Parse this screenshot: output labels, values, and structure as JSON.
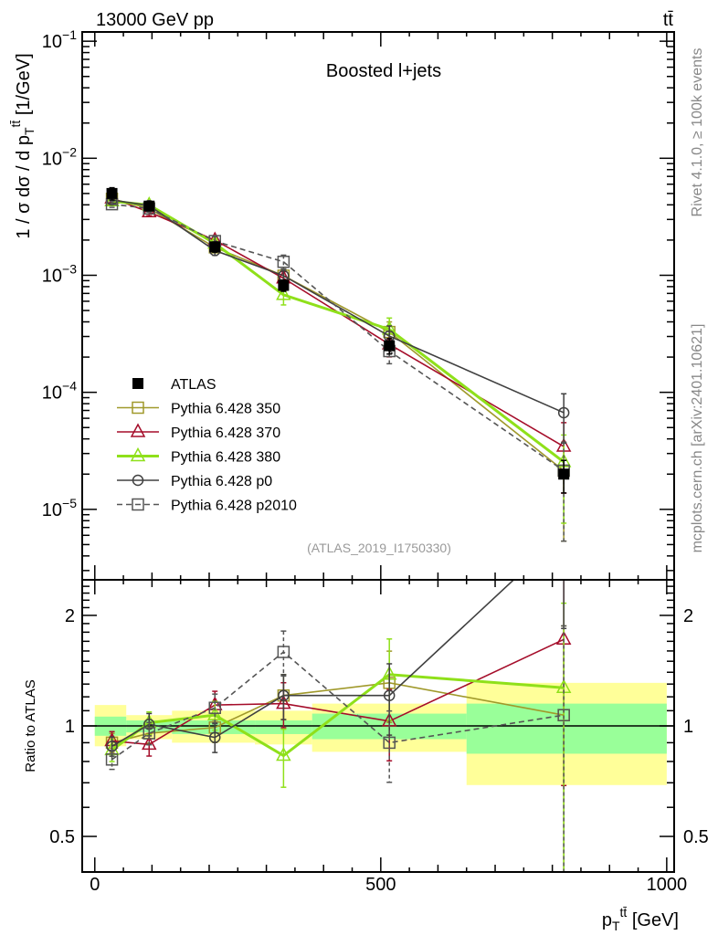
{
  "header": {
    "energy": "13000 GeV pp",
    "process": "tt̄",
    "plot_title": "Boosted l+jets",
    "analysis_id": "(ATLAS_2019_I1750330)",
    "rivet_info": "Rivet 4.1.0, ≥ 100k events",
    "mcplots_info": "mcplots.cern.ch [arXiv:2401.10621]"
  },
  "chart_data": [
    {
      "type": "line",
      "title": "Boosted l+jets",
      "ylabel_parts": [
        "1 / σ dσ / d p",
        "T",
        "tt̄",
        " [1/GeV]"
      ],
      "xlabel_parts": [
        "p",
        "T",
        "tt̄",
        " [GeV]"
      ],
      "yscale": "log",
      "ylim": [
        2.5e-06,
        0.12
      ],
      "xlim": [
        -22,
        1013
      ],
      "y_ticks": [
        {
          "value": 0.1,
          "base": "10",
          "exp": "−1"
        },
        {
          "value": 0.01,
          "base": "10",
          "exp": "−2"
        },
        {
          "value": 0.001,
          "base": "10",
          "exp": "−3"
        },
        {
          "value": 0.0001,
          "base": "10",
          "exp": "−4"
        },
        {
          "value": 1e-05,
          "base": "10",
          "exp": "−5"
        }
      ],
      "legend_position": "lower-left",
      "x": [
        30,
        95,
        210,
        330,
        515,
        820
      ],
      "bin_edges": [
        0,
        55,
        135,
        280,
        380,
        650,
        1000
      ],
      "data": {
        "name": "ATLAS",
        "values": [
          0.005,
          0.0039,
          0.00175,
          0.00082,
          0.00025,
          2e-05
        ],
        "rel_err": [
          0.12,
          0.07,
          0.1,
          0.11,
          0.15,
          0.31
        ]
      },
      "series": [
        {
          "name": "Pythia 6.428 350",
          "color": "#a0992b",
          "marker": "square-open",
          "dash": false,
          "ratio": [
            0.9,
            0.955,
            0.99,
            1.21,
            1.31,
            1.07
          ],
          "rel_err": [
            0.06,
            0.06,
            0.09,
            0.14,
            0.22,
            0.75
          ]
        },
        {
          "name": "Pythia 6.428 370",
          "color": "#a50d2a",
          "marker": "triangle-open",
          "dash": false,
          "ratio": [
            0.91,
            0.89,
            1.14,
            1.15,
            1.03,
            1.72
          ],
          "rel_err": [
            0.06,
            0.07,
            0.09,
            0.14,
            0.22,
            0.6
          ]
        },
        {
          "name": "Pythia 6.428 380",
          "color": "#8fe01a",
          "marker": "triangle-open",
          "dash": false,
          "ratio": [
            0.86,
            1.02,
            1.07,
            0.83,
            1.38,
            1.27
          ],
          "rel_err": [
            0.07,
            0.07,
            0.09,
            0.18,
            0.25,
            0.7
          ]
        },
        {
          "name": "Pythia 6.428 p0",
          "color": "#404040",
          "marker": "circle-open",
          "dash": false,
          "ratio": [
            0.88,
            1.01,
            0.93,
            1.21,
            1.21,
            3.35
          ],
          "rel_err": [
            0.06,
            0.07,
            0.09,
            0.14,
            0.22,
            0.45
          ]
        },
        {
          "name": "Pythia 6.428 p2010",
          "color": "#555555",
          "marker": "square-open",
          "dash": true,
          "ratio": [
            0.81,
            0.955,
            1.12,
            1.59,
            0.9,
            1.07
          ],
          "rel_err": [
            0.06,
            0.07,
            0.09,
            0.14,
            0.22,
            0.75
          ]
        }
      ]
    },
    {
      "type": "line",
      "ylabel": "Ratio to ATLAS",
      "yscale": "log",
      "ylim": [
        0.4,
        2.5
      ],
      "y_ticks": [
        {
          "value": 0.5,
          "label": "0.5"
        },
        {
          "value": 1,
          "label": "1"
        },
        {
          "value": 2,
          "label": "2"
        }
      ],
      "x_ticks": [
        {
          "value": 0,
          "label": "0"
        },
        {
          "value": 500,
          "label": "500"
        },
        {
          "value": 1000,
          "label": "1000"
        }
      ],
      "band_outer": [
        [
          0.88,
          1.14
        ],
        [
          0.92,
          1.07
        ],
        [
          0.9,
          1.1
        ],
        [
          0.89,
          1.1
        ],
        [
          0.85,
          1.15
        ],
        [
          0.69,
          1.31
        ]
      ],
      "band_inner": [
        [
          0.94,
          1.06
        ],
        [
          0.96,
          1.035
        ],
        [
          0.95,
          1.035
        ],
        [
          0.95,
          1.035
        ],
        [
          0.92,
          1.08
        ],
        [
          0.84,
          1.15
        ]
      ],
      "band_outer_color": "#ffff99",
      "band_inner_color": "#99ff99"
    }
  ]
}
